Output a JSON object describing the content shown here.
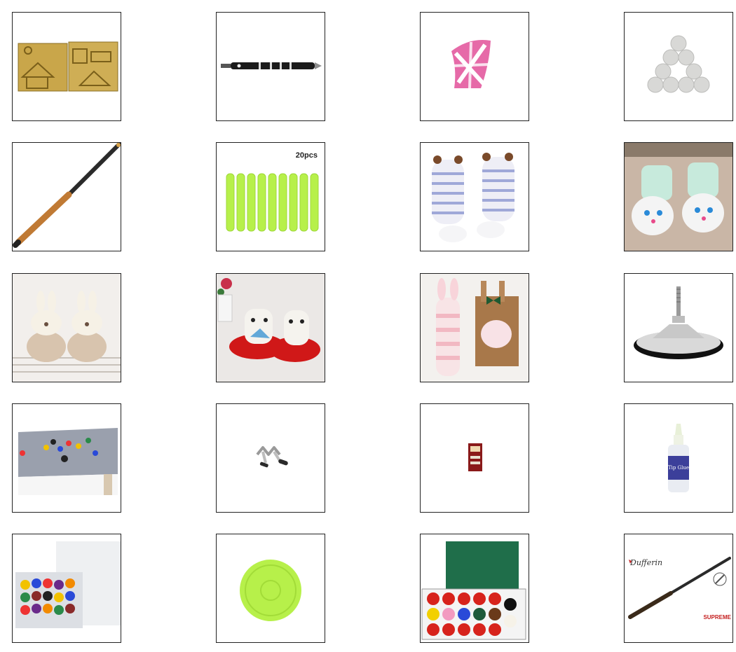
{
  "grid": {
    "columns": 4,
    "rows": 5,
    "tiles": [
      {
        "subject": "gold-mould-plates"
      },
      {
        "subject": "dart-shaft"
      },
      {
        "subject": "dart-flight"
      },
      {
        "subject": "white-balls-triangle"
      },
      {
        "subject": "cue-stick"
      },
      {
        "subject": "foam-darts-green",
        "caption": "20pcs"
      },
      {
        "subject": "bear-baby-socks"
      },
      {
        "subject": "cat-baby-socks-mint"
      },
      {
        "subject": "bunny-baby-booties"
      },
      {
        "subject": "red-cat-baby-shoes"
      },
      {
        "subject": "bunny-socks-gift-box"
      },
      {
        "subject": "cue-stand-base"
      },
      {
        "subject": "pool-table"
      },
      {
        "subject": "bridge-head"
      },
      {
        "subject": "tip-pack"
      },
      {
        "subject": "glue-bottle",
        "caption": "Tip Glue"
      },
      {
        "subject": "pool-ball-set-box"
      },
      {
        "subject": "air-hockey-puck"
      },
      {
        "subject": "snooker-ball-set"
      },
      {
        "subject": "cue-advert",
        "brand": "Dufferin",
        "caption": "SUPREME"
      }
    ]
  },
  "colors": {
    "border": "#222222",
    "gold": "#c9a64a",
    "lime": "#b7f04a",
    "pink": "#e66aa8",
    "felt_grey": "#9aa0ad",
    "snooker_red": "#d7231c",
    "box_green": "#1f6e4a"
  }
}
